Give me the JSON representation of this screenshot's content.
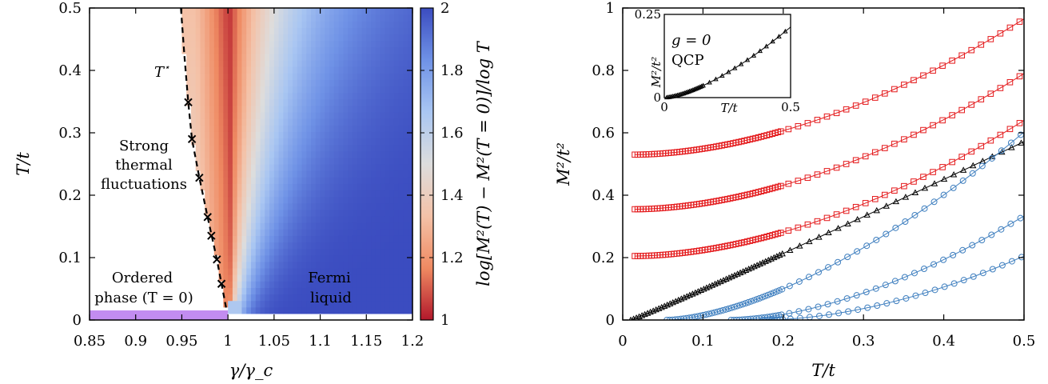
{
  "chart_data": [
    {
      "type": "heatmap",
      "xlabel": "γ/γ_c",
      "ylabel": "T/t",
      "xlim": [
        0.85,
        1.2
      ],
      "ylim": [
        0,
        0.5
      ],
      "xticks": [
        "0.85",
        "0.9",
        "0.95",
        "1",
        "1.05",
        "1.1",
        "1.15",
        "1.2"
      ],
      "yticks": [
        "0",
        "0.1",
        "0.2",
        "0.3",
        "0.4",
        "0.5"
      ],
      "colorbar": {
        "label": "log[M²(T) − M²(T = 0)]/log T",
        "range": [
          1,
          2
        ],
        "ticks": [
          "1",
          "1.2",
          "1.4",
          "1.6",
          "1.8",
          "2"
        ],
        "colormap": [
          "#b2182b",
          "#ef8a62",
          "#f4c2a8",
          "#dddddd",
          "#a9c6f2",
          "#6f92e6",
          "#3b4cc0"
        ]
      },
      "crossover_label": "T*",
      "crossover_points": [
        {
          "x": 0.993,
          "y": 0.058
        },
        {
          "x": 0.988,
          "y": 0.097
        },
        {
          "x": 0.982,
          "y": 0.135
        },
        {
          "x": 0.978,
          "y": 0.165
        },
        {
          "x": 0.969,
          "y": 0.228
        },
        {
          "x": 0.961,
          "y": 0.29
        },
        {
          "x": 0.957,
          "y": 0.349
        }
      ],
      "crossover_curve": [
        {
          "x": 0.998,
          "y": 0.02
        },
        {
          "x": 0.993,
          "y": 0.058
        },
        {
          "x": 0.988,
          "y": 0.097
        },
        {
          "x": 0.978,
          "y": 0.165
        },
        {
          "x": 0.969,
          "y": 0.228
        },
        {
          "x": 0.961,
          "y": 0.29
        },
        {
          "x": 0.957,
          "y": 0.349
        },
        {
          "x": 0.953,
          "y": 0.42
        },
        {
          "x": 0.949,
          "y": 0.5
        }
      ],
      "annotations": {
        "tstar": "T",
        "strong": [
          "Strong",
          "thermal",
          "fluctuations"
        ],
        "ordered": [
          "Ordered",
          "phase (T = 0)"
        ],
        "fermi": [
          "Fermi",
          "liquid"
        ]
      },
      "ordered_bar": {
        "x_from": 0.85,
        "x_to": 1.0,
        "color": "#c28cf0"
      },
      "colors": {
        "strong_red": "#b2182b",
        "mid": "#dddddd",
        "blue": "#3b4cc0"
      }
    },
    {
      "type": "line",
      "xlabel": "T/t",
      "ylabel": "M²/t²",
      "xlim": [
        0,
        0.5
      ],
      "ylim": [
        0,
        1
      ],
      "xticks": [
        "0",
        "0.1",
        "0.2",
        "0.3",
        "0.4",
        "0.5"
      ],
      "yticks": [
        "0",
        "0.2",
        "0.4",
        "0.6",
        "0.8",
        "1"
      ],
      "series": [
        {
          "group": "ordered",
          "marker": "square",
          "color": "#e41a1c",
          "M0": 0.53,
          "a": 1.6,
          "p": 1.8,
          "x_start": 0.015
        },
        {
          "group": "ordered",
          "marker": "square",
          "color": "#e41a1c",
          "M0": 0.355,
          "a": 1.6,
          "p": 1.8,
          "x_start": 0.015
        },
        {
          "group": "ordered",
          "marker": "square",
          "color": "#e41a1c",
          "M0": 0.205,
          "a": 1.6,
          "p": 1.8,
          "x_start": 0.015
        },
        {
          "group": "qcp",
          "marker": "triangle",
          "color": "#000000",
          "M0": 0.0,
          "a": 1.2,
          "p": 1.04,
          "x_start": 0.01
        },
        {
          "group": "disordered",
          "marker": "circle",
          "color": "#3f7fbf",
          "M0": 0.0,
          "a": 2.2,
          "p": 1.6,
          "x_start": 0.055
        },
        {
          "group": "disordered",
          "marker": "circle",
          "color": "#3f7fbf",
          "M0": 0.0,
          "a": 1.85,
          "p": 1.7,
          "x_start": 0.135
        },
        {
          "group": "disordered",
          "marker": "circle",
          "color": "#3f7fbf",
          "M0": 0.0,
          "a": 1.55,
          "p": 1.8,
          "x_start": 0.175
        }
      ],
      "inset": {
        "title_line1": "g = 0",
        "title_line2": "QCP",
        "xlabel": "T/t",
        "ylabel": "M²/t²",
        "xlim": [
          0,
          0.5
        ],
        "ylim": [
          0,
          0.25
        ],
        "xticks": [
          "0",
          "0.5"
        ],
        "yticks": [
          "0",
          "0.25"
        ],
        "series": {
          "marker": "triangle",
          "color": "#000000",
          "a": 0.6,
          "p": 1.5,
          "x_start": 0.0
        }
      }
    }
  ]
}
